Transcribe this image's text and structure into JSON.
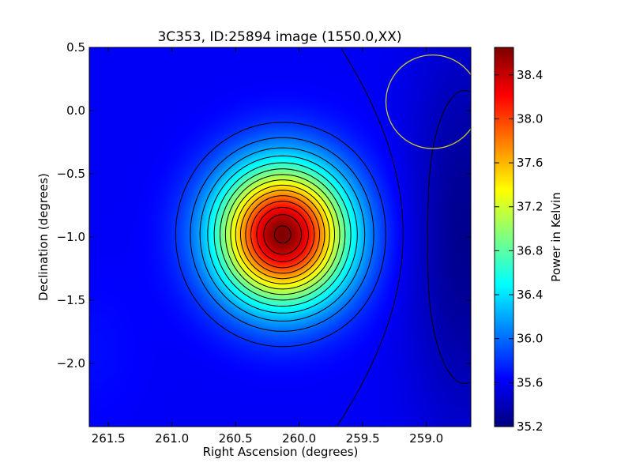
{
  "chart_data": {
    "type": "heatmap",
    "title": "3C353, ID:25894 image (1550.0,XX)",
    "xlabel": "Right Ascension (degrees)",
    "ylabel": "Declination (degrees)",
    "colorbar_label": "Power in Kelvin",
    "colormap": "jet",
    "xlim": [
      261.65,
      258.65
    ],
    "ylim": [
      -2.5,
      0.5
    ],
    "x_ticks": [
      261.5,
      261.0,
      260.5,
      260.0,
      259.5,
      259.0
    ],
    "x_tick_labels": [
      "261.5",
      "261.0",
      "260.5",
      "260.0",
      "259.5",
      "259.0"
    ],
    "y_ticks": [
      0.5,
      0.0,
      -0.5,
      -1.0,
      -1.5,
      -2.0
    ],
    "y_tick_labels": [
      "0.5",
      "0.0",
      "−0.5",
      "−1.0",
      "−1.5",
      "−2.0"
    ],
    "colorbar_range": [
      35.2,
      38.65
    ],
    "colorbar_ticks": [
      38.4,
      38.0,
      37.6,
      37.2,
      36.8,
      36.4,
      36.0,
      35.6,
      35.2
    ],
    "colorbar_tick_labels": [
      "38.4",
      "38.0",
      "37.6",
      "37.2",
      "36.8",
      "36.4",
      "36.0",
      "35.6",
      "35.2"
    ],
    "peak": {
      "ra": 260.13,
      "dec": -0.98,
      "value": 38.65
    },
    "background_level": 35.6,
    "low_region": {
      "ra": 258.7,
      "dec": -1.0,
      "value": 35.25
    },
    "beam_circle": {
      "ra": 258.95,
      "dec": 0.07,
      "radius_deg": 0.37,
      "color": "#c8c832"
    },
    "contour_color": "#000000"
  }
}
